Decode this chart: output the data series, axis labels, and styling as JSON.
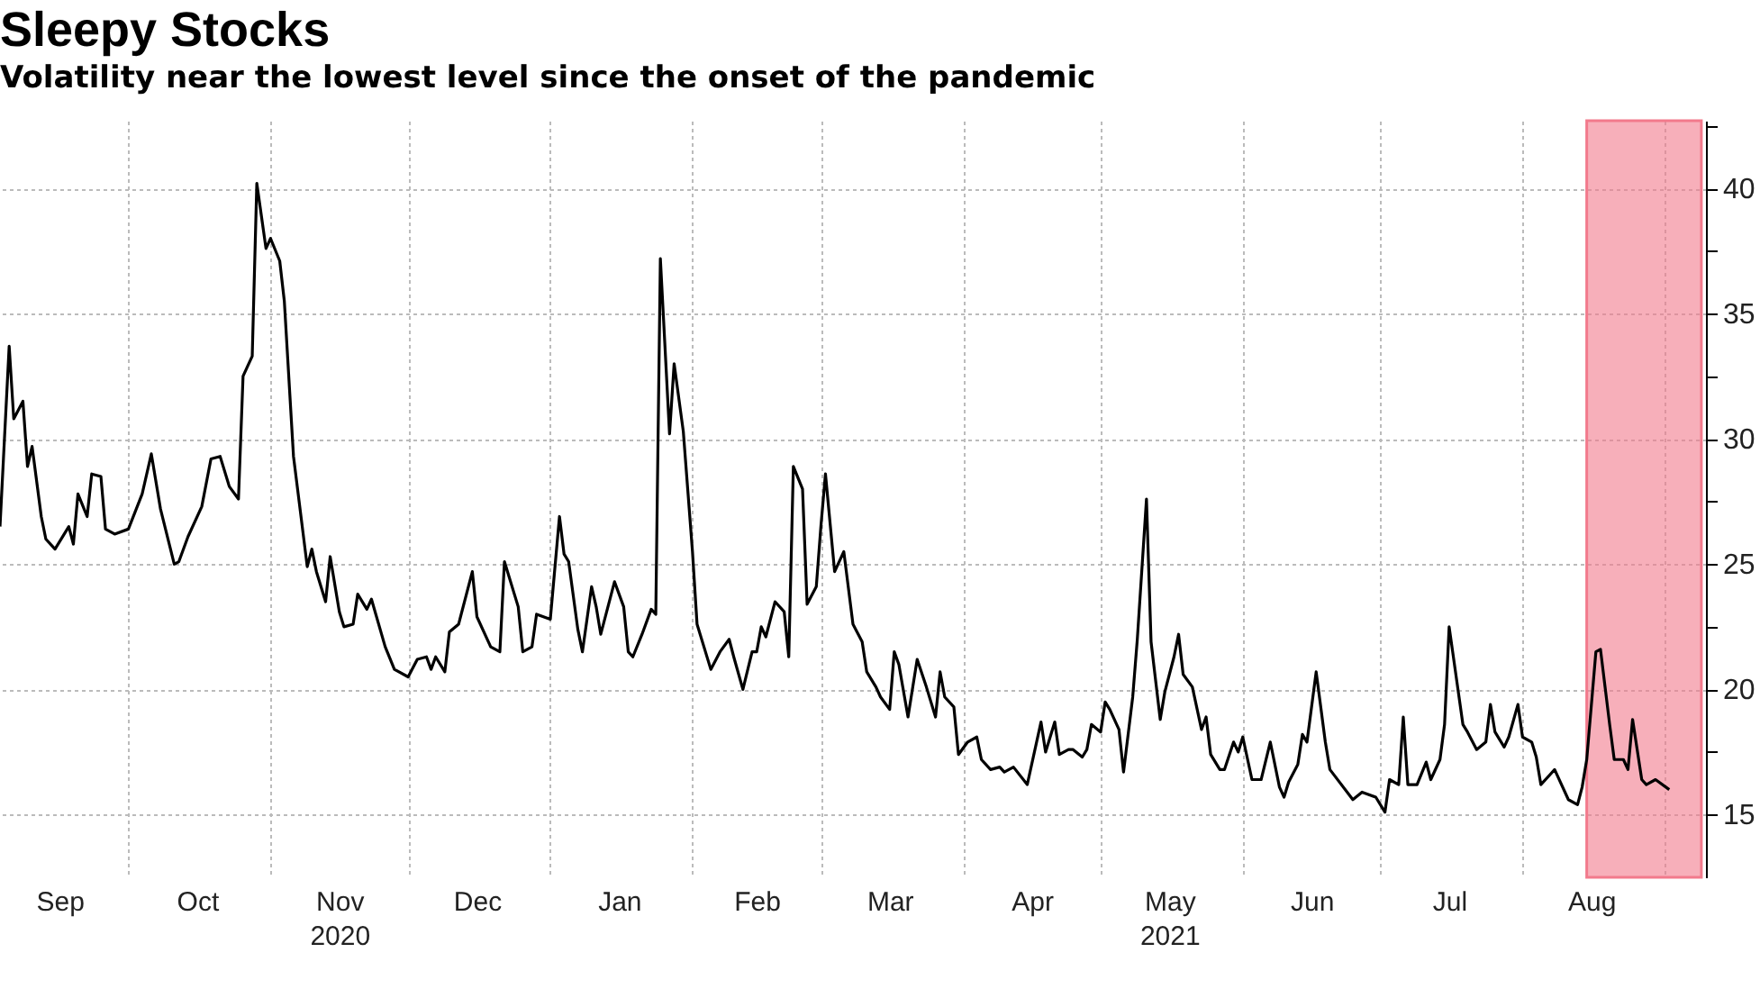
{
  "chart_data": {
    "type": "line",
    "title": "Sleepy Stocks",
    "subtitle": "Volatility near the lowest level since the onset of the pandemic",
    "x": [
      "2020-09-03",
      "2020-09-05",
      "2020-09-06",
      "2020-09-08",
      "2020-09-09",
      "2020-09-10",
      "2020-09-12",
      "2020-09-13",
      "2020-09-15",
      "2020-09-18",
      "2020-09-19",
      "2020-09-20",
      "2020-09-22",
      "2020-09-23",
      "2020-09-25",
      "2020-09-26",
      "2020-09-28",
      "2020-10-01",
      "2020-10-04",
      "2020-10-06",
      "2020-10-08",
      "2020-10-11",
      "2020-10-12",
      "2020-10-14",
      "2020-10-17",
      "2020-10-19",
      "2020-10-21",
      "2020-10-23",
      "2020-10-25",
      "2020-10-26",
      "2020-10-28",
      "2020-10-29",
      "2020-10-31",
      "2020-11-01",
      "2020-11-03",
      "2020-11-04",
      "2020-11-06",
      "2020-11-09",
      "2020-11-10",
      "2020-11-11",
      "2020-11-13",
      "2020-11-14",
      "2020-11-16",
      "2020-11-17",
      "2020-11-19",
      "2020-11-20",
      "2020-11-22",
      "2020-11-23",
      "2020-11-26",
      "2020-11-28",
      "2020-12-01",
      "2020-12-03",
      "2020-12-05",
      "2020-12-06",
      "2020-12-07",
      "2020-12-09",
      "2020-12-10",
      "2020-12-12",
      "2020-12-15",
      "2020-12-16",
      "2020-12-19",
      "2020-12-21",
      "2020-12-22",
      "2020-12-25",
      "2020-12-26",
      "2020-12-28",
      "2020-12-29",
      "2021-01-01",
      "2021-01-03",
      "2021-01-04",
      "2021-01-05",
      "2021-01-07",
      "2021-01-08",
      "2021-01-10",
      "2021-01-11",
      "2021-01-12",
      "2021-01-15",
      "2021-01-17",
      "2021-01-18",
      "2021-01-19",
      "2021-01-21",
      "2021-01-23",
      "2021-01-24",
      "2021-01-25",
      "2021-01-27",
      "2021-01-28",
      "2021-01-30",
      "2021-02-01",
      "2021-02-02",
      "2021-02-05",
      "2021-02-07",
      "2021-02-09",
      "2021-02-10",
      "2021-02-12",
      "2021-02-14",
      "2021-02-15",
      "2021-02-16",
      "2021-02-17",
      "2021-02-19",
      "2021-02-21",
      "2021-02-22",
      "2021-02-23",
      "2021-02-25",
      "2021-02-26",
      "2021-02-28",
      "2021-03-01",
      "2021-03-02",
      "2021-03-04",
      "2021-03-06",
      "2021-03-08",
      "2021-03-10",
      "2021-03-11",
      "2021-03-13",
      "2021-03-14",
      "2021-03-16",
      "2021-03-17",
      "2021-03-18",
      "2021-03-20",
      "2021-03-22",
      "2021-03-24",
      "2021-03-26",
      "2021-03-27",
      "2021-03-28",
      "2021-03-30",
      "2021-03-31",
      "2021-04-02",
      "2021-04-04",
      "2021-04-05",
      "2021-04-07",
      "2021-04-09",
      "2021-04-10",
      "2021-04-12",
      "2021-04-15",
      "2021-04-18",
      "2021-04-19",
      "2021-04-21",
      "2021-04-22",
      "2021-04-24",
      "2021-04-25",
      "2021-04-27",
      "2021-04-28",
      "2021-04-29",
      "2021-05-01",
      "2021-05-02",
      "2021-05-03",
      "2021-05-05",
      "2021-05-06",
      "2021-05-08",
      "2021-05-09",
      "2021-05-11",
      "2021-05-12",
      "2021-05-14",
      "2021-05-15",
      "2021-05-17",
      "2021-05-18",
      "2021-05-19",
      "2021-05-21",
      "2021-05-23",
      "2021-05-24",
      "2021-05-25",
      "2021-05-27",
      "2021-05-28",
      "2021-05-30",
      "2021-05-31",
      "2021-06-01",
      "2021-06-03",
      "2021-06-05",
      "2021-06-07",
      "2021-06-09",
      "2021-06-10",
      "2021-06-11",
      "2021-06-13",
      "2021-06-14",
      "2021-06-15",
      "2021-06-17",
      "2021-06-19",
      "2021-06-20",
      "2021-06-25",
      "2021-06-27",
      "2021-06-30",
      "2021-07-02",
      "2021-07-03",
      "2021-07-05",
      "2021-07-06",
      "2021-07-07",
      "2021-07-09",
      "2021-07-11",
      "2021-07-12",
      "2021-07-14",
      "2021-07-15",
      "2021-07-16",
      "2021-07-19",
      "2021-07-20",
      "2021-07-22",
      "2021-07-24",
      "2021-07-25",
      "2021-07-26",
      "2021-07-28",
      "2021-07-29",
      "2021-07-31",
      "2021-08-01",
      "2021-08-03",
      "2021-08-04",
      "2021-08-05",
      "2021-08-07",
      "2021-08-08",
      "2021-08-11",
      "2021-08-13",
      "2021-08-14",
      "2021-08-15",
      "2021-08-17",
      "2021-08-18",
      "2021-08-20",
      "2021-08-21",
      "2021-08-23",
      "2021-08-24",
      "2021-08-25",
      "2021-08-27",
      "2021-08-28",
      "2021-08-30",
      "2021-09-02"
    ],
    "series": [
      {
        "color": "#000000",
        "values": [
          26.5,
          33.7,
          30.8,
          31.5,
          28.9,
          29.7,
          26.9,
          26.0,
          25.6,
          26.5,
          25.8,
          27.8,
          26.9,
          28.6,
          28.5,
          26.4,
          26.2,
          26.4,
          27.8,
          29.4,
          27.2,
          25.0,
          25.1,
          26.1,
          27.3,
          29.2,
          29.3,
          28.1,
          27.6,
          32.5,
          33.3,
          40.2,
          37.6,
          38.0,
          37.1,
          35.5,
          29.3,
          24.9,
          25.6,
          24.7,
          23.5,
          25.3,
          23.1,
          22.5,
          22.6,
          23.8,
          23.2,
          23.6,
          21.7,
          20.8,
          20.5,
          21.2,
          21.3,
          20.8,
          21.3,
          20.7,
          22.3,
          22.6,
          24.7,
          22.9,
          21.7,
          21.5,
          25.1,
          23.3,
          21.5,
          21.7,
          23.0,
          22.8,
          26.9,
          25.4,
          25.1,
          22.4,
          21.5,
          24.1,
          23.3,
          22.2,
          24.3,
          23.3,
          21.5,
          21.3,
          22.2,
          23.2,
          23.0,
          37.2,
          30.2,
          33.0,
          30.3,
          25.5,
          22.6,
          20.8,
          21.5,
          22.0,
          21.3,
          20.0,
          21.5,
          21.5,
          22.5,
          22.1,
          23.5,
          23.1,
          21.3,
          28.9,
          28.0,
          23.4,
          24.1,
          26.5,
          28.6,
          24.7,
          25.5,
          22.6,
          21.9,
          20.7,
          20.1,
          19.7,
          19.2,
          21.5,
          21.0,
          18.9,
          21.2,
          20.1,
          18.9,
          20.7,
          19.7,
          19.3,
          17.4,
          17.9,
          18.1,
          17.2,
          16.8,
          16.9,
          16.7,
          16.9,
          16.2,
          18.7,
          17.5,
          18.7,
          17.4,
          17.6,
          17.6,
          17.3,
          17.6,
          18.6,
          18.3,
          19.5,
          19.2,
          18.4,
          16.7,
          19.7,
          22.0,
          27.6,
          21.9,
          18.8,
          19.9,
          21.3,
          22.2,
          20.6,
          20.1,
          18.4,
          18.9,
          17.4,
          16.8,
          16.8,
          17.9,
          17.5,
          18.1,
          16.4,
          16.4,
          17.9,
          16.1,
          15.7,
          16.3,
          17.0,
          18.2,
          17.9,
          20.7,
          17.9,
          16.8,
          15.6,
          15.9,
          15.7,
          15.1,
          16.4,
          16.2,
          18.9,
          16.2,
          16.2,
          17.1,
          16.4,
          17.2,
          18.6,
          22.5,
          18.6,
          18.3,
          17.6,
          17.9,
          19.4,
          18.3,
          17.7,
          18.1,
          19.4,
          18.1,
          17.9,
          17.3,
          16.2,
          16.6,
          16.8,
          15.6,
          15.4,
          16.1,
          17.2,
          21.5,
          21.6,
          18.6,
          17.2,
          17.2,
          16.8,
          18.8,
          16.4,
          16.2,
          16.4,
          16.0
        ]
      }
    ],
    "xlim": [
      "2020-09-03",
      "2021-09-10"
    ],
    "xticks": [
      {
        "value": "2020-09-16",
        "label": "Sep"
      },
      {
        "value": "2020-10-01",
        "label": null
      },
      {
        "value": "2020-10-16",
        "label": "Oct"
      },
      {
        "value": "2020-11-01",
        "label": null
      },
      {
        "value": "2020-11-16",
        "label": "Nov\n2020"
      },
      {
        "value": "2020-12-01",
        "label": null
      },
      {
        "value": "2020-12-16",
        "label": "Dec"
      },
      {
        "value": "2021-01-01",
        "label": null
      },
      {
        "value": "2021-01-16",
        "label": "Jan"
      },
      {
        "value": "2021-02-01",
        "label": null
      },
      {
        "value": "2021-02-15",
        "label": "Feb"
      },
      {
        "value": "2021-03-01",
        "label": null
      },
      {
        "value": "2021-03-16",
        "label": "Mar"
      },
      {
        "value": "2021-04-01",
        "label": null
      },
      {
        "value": "2021-04-16",
        "label": "Apr"
      },
      {
        "value": "2021-05-01",
        "label": null
      },
      {
        "value": "2021-05-16",
        "label": "May\n2021"
      },
      {
        "value": "2021-06-01",
        "label": null
      },
      {
        "value": "2021-06-16",
        "label": "Jun"
      },
      {
        "value": "2021-07-01",
        "label": null
      },
      {
        "value": "2021-07-16",
        "label": "Jul"
      },
      {
        "value": "2021-08-01",
        "label": null
      },
      {
        "value": "2021-08-16",
        "label": "Aug"
      },
      {
        "value": "2021-09-01",
        "label": null
      }
    ],
    "ylim": [
      12.5,
      42.7
    ],
    "yticks": [
      15,
      {
        "value": 17.5,
        "label": null
      },
      20,
      {
        "value": 22.5,
        "label": null
      },
      25,
      {
        "value": 27.5,
        "label": null
      },
      30,
      {
        "value": 32.5,
        "label": null
      },
      35,
      {
        "value": 37.5,
        "label": null
      },
      40,
      {
        "value": 42.5,
        "label": null
      }
    ],
    "bands": [
      {
        "axis": "x",
        "from": "2021-08-15",
        "to": "2021-09-09",
        "color": "#f27a8c"
      }
    ],
    "grid": true,
    "legend": false,
    "line_style": "solid",
    "marker": "none"
  }
}
